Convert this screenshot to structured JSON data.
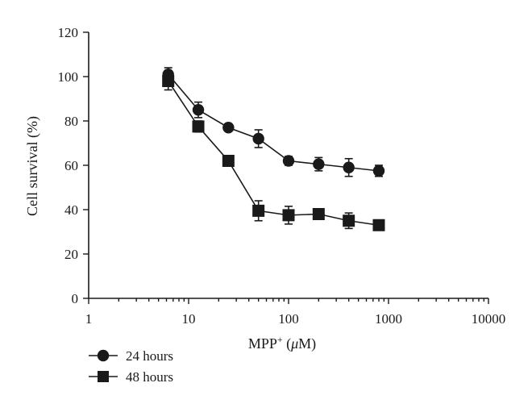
{
  "chart_data": {
    "type": "line",
    "title": "",
    "xlabel": "MPP",
    "xlabel_sup": "+",
    "xlabel_unit_open": " (",
    "xlabel_unit_mu": "μ",
    "xlabel_unit_close": "M)",
    "ylabel": "Cell survival (%)",
    "xscale": "log",
    "xlim": [
      1,
      10000
    ],
    "ylim": [
      0,
      120
    ],
    "xticks": [
      1,
      10,
      100,
      1000,
      10000
    ],
    "xtick_labels": [
      "1",
      "10",
      "100",
      "1000",
      "10000"
    ],
    "yticks": [
      0,
      20,
      40,
      60,
      80,
      100,
      120
    ],
    "ytick_labels": [
      "0",
      "20",
      "40",
      "60",
      "80",
      "100",
      "120"
    ],
    "grid": false,
    "legend_position": "bottom-left",
    "series": [
      {
        "name": "24 hours",
        "marker": "circle",
        "color": "#1a1a1a",
        "x": [
          6.25,
          12.5,
          25,
          50,
          100,
          200,
          400,
          800
        ],
        "y": [
          101,
          85,
          77,
          72,
          62,
          60.5,
          59,
          57.5
        ],
        "err": [
          3,
          3.5,
          1.5,
          4,
          2,
          3,
          4,
          2.5
        ]
      },
      {
        "name": "48 hours",
        "marker": "square",
        "color": "#1a1a1a",
        "x": [
          6.25,
          12.5,
          25,
          50,
          100,
          200,
          400,
          800
        ],
        "y": [
          98,
          77.5,
          62,
          39.5,
          37.5,
          38,
          35,
          33
        ],
        "err": [
          4,
          2.5,
          2,
          4.5,
          4,
          2,
          3.5,
          1.5
        ]
      }
    ]
  }
}
